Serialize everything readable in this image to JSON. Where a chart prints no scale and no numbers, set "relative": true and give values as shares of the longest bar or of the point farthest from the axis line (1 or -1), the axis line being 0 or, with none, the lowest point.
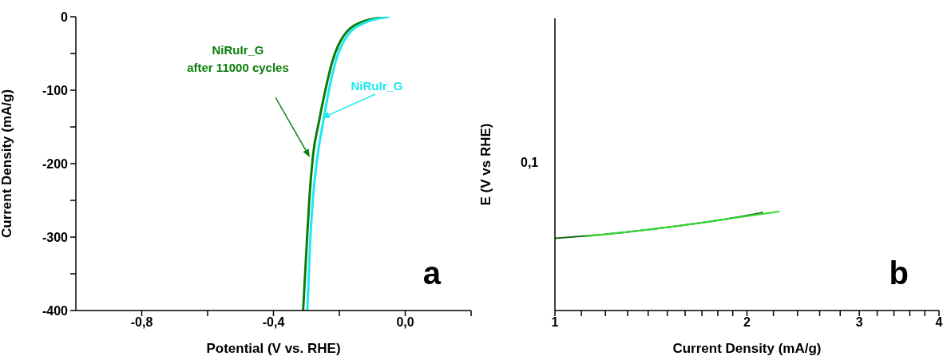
{
  "chart_data": [
    {
      "type": "line",
      "xlabel": "Potential (V vs. RHE)",
      "ylabel": "Current Density (mA/g)",
      "xlim": [
        -1.0,
        0.2
      ],
      "xticks": [
        {
          "value": -0.8,
          "label": "-0,8"
        },
        {
          "value": -0.6,
          "label": null
        },
        {
          "value": -0.4,
          "label": "-0,4"
        },
        {
          "value": -0.2,
          "label": null
        },
        {
          "value": 0,
          "label": "0,0"
        },
        {
          "value": 0.2,
          "label": null
        }
      ],
      "ylim": [
        -400,
        0
      ],
      "yticks": [
        -400,
        {
          "value": -350,
          "label": null
        },
        -300,
        {
          "value": -250,
          "label": null
        },
        -200,
        {
          "value": -150,
          "label": null
        },
        -100,
        {
          "value": -50,
          "label": null
        },
        0
      ],
      "series": [
        {
          "color": "#0a7d0a",
          "x": [
            -0.31,
            -0.299,
            -0.291,
            -0.28,
            -0.262,
            -0.243,
            -0.22,
            -0.187,
            -0.131,
            -0.052
          ],
          "values": [
            -400,
            -310,
            -247,
            -189,
            -143,
            -101,
            -59,
            -26,
            -7,
            0
          ]
        },
        {
          "color": "#1ee8f0",
          "x": [
            -0.297,
            -0.289,
            -0.28,
            -0.266,
            -0.249,
            -0.232,
            -0.21,
            -0.178,
            -0.122,
            -0.047
          ],
          "values": [
            -400,
            -310,
            -247,
            -189,
            -143,
            -101,
            -59,
            -27,
            -8,
            0
          ]
        }
      ],
      "annotations": [
        "NiRuIr_G\nafter 11000 cycles",
        "NiRuIr_G",
        "a"
      ]
    },
    {
      "type": "line",
      "xlabel": "Current Density (mA/g)",
      "ylabel": "E (V vs RHE)",
      "log": "x",
      "relative": true,
      "xlim": [
        1,
        4
      ],
      "xticks": [
        1,
        {
          "value": 1.1,
          "label": null
        },
        {
          "value": 1.2,
          "label": null
        },
        {
          "value": 1.3,
          "label": null
        },
        {
          "value": 1.4,
          "label": null
        },
        {
          "value": 1.5,
          "label": null
        },
        {
          "value": 1.6,
          "label": null
        },
        {
          "value": 1.7,
          "label": null
        },
        {
          "value": 1.8,
          "label": null
        },
        {
          "value": 1.9,
          "label": null
        },
        2,
        {
          "value": 2.2,
          "label": null
        },
        {
          "value": 2.4,
          "label": null
        },
        {
          "value": 2.6,
          "label": null
        },
        {
          "value": 2.8,
          "label": null
        },
        3,
        {
          "value": 3.2,
          "label": null
        },
        {
          "value": 3.4,
          "label": null
        },
        {
          "value": 3.6,
          "label": null
        },
        {
          "value": 3.8,
          "label": null
        },
        4
      ],
      "series": [
        {
          "color": "#1a6e1a",
          "x": [
            1,
            1.2,
            1.5,
            1.8,
            2.12
          ],
          "values": [
            0.73,
            0.77,
            0.84,
            0.91,
            0.99
          ]
        },
        {
          "color": "#33dd33",
          "x": [
            1.12,
            1.5,
            1.8,
            2.25
          ],
          "values": [
            0.75,
            0.84,
            0.91,
            1
          ]
        }
      ],
      "annotations": [
        "0,1",
        "b"
      ]
    }
  ]
}
